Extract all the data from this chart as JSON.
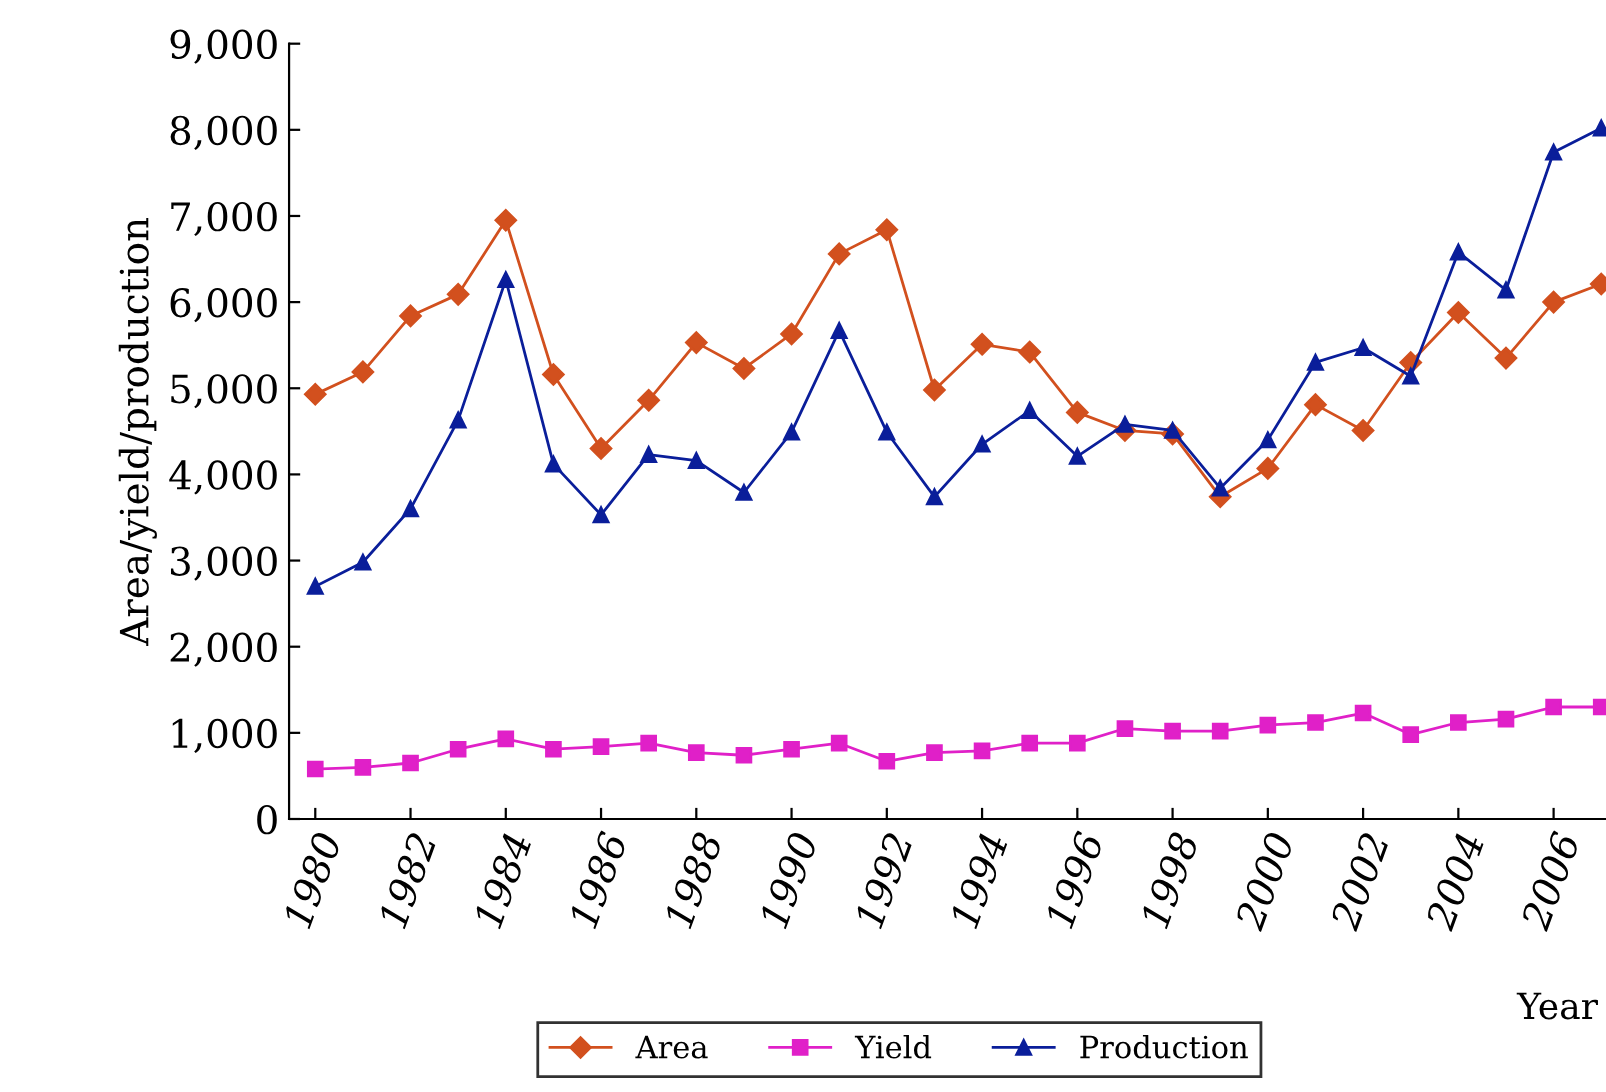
{
  "chart_data": {
    "type": "line",
    "ylabel": "Area/yield/production",
    "xlabel": "Year",
    "x": [
      1980,
      1981,
      1982,
      1983,
      1984,
      1985,
      1986,
      1987,
      1988,
      1989,
      1990,
      1991,
      1992,
      1993,
      1994,
      1995,
      1996,
      1997,
      1998,
      1999,
      2000,
      2001,
      2002,
      2003,
      2004,
      2005,
      2006,
      2007
    ],
    "series": [
      {
        "name": "Area",
        "color": "#d2501e",
        "marker": "diamond",
        "values": [
          4930,
          5190,
          5840,
          6090,
          6950,
          5160,
          4300,
          4860,
          5530,
          5230,
          5630,
          6560,
          6840,
          4980,
          5510,
          5420,
          4720,
          4510,
          4470,
          3740,
          4070,
          4810,
          4510,
          5300,
          5880,
          5350,
          6000,
          6210
        ]
      },
      {
        "name": "Yield",
        "color": "#e020c8",
        "marker": "square",
        "values": [
          580,
          600,
          650,
          810,
          930,
          810,
          840,
          880,
          770,
          740,
          810,
          880,
          670,
          770,
          790,
          880,
          880,
          1050,
          1020,
          1020,
          1090,
          1120,
          1230,
          980,
          1120,
          1160,
          1300,
          1300
        ]
      },
      {
        "name": "Production",
        "color": "#0a1e9a",
        "marker": "triangle",
        "values": [
          2700,
          2980,
          3600,
          4630,
          6260,
          4120,
          3530,
          4230,
          4160,
          3790,
          4490,
          5670,
          4490,
          3740,
          4350,
          4740,
          4210,
          4580,
          4510,
          3840,
          4400,
          5300,
          5470,
          5140,
          6580,
          6140,
          7740,
          8020
        ]
      }
    ],
    "xlim": [
      1979.45,
      2007.1
    ],
    "xticks": [
      1980,
      1982,
      1984,
      1986,
      1988,
      1990,
      1992,
      1994,
      1996,
      1998,
      2000,
      2002,
      2004,
      2006
    ],
    "ylim": [
      0,
      9000
    ],
    "yticks": [
      0,
      {
        "value": 1000,
        "label": "1,000"
      },
      {
        "value": 2000,
        "label": "2,000"
      },
      {
        "value": 3000,
        "label": "3,000"
      },
      {
        "value": 4000,
        "label": "4,000"
      },
      {
        "value": 5000,
        "label": "5,000"
      },
      {
        "value": 6000,
        "label": "6,000"
      },
      {
        "value": 7000,
        "label": "7,000"
      },
      {
        "value": 8000,
        "label": "8,000"
      },
      {
        "value": 9000,
        "label": "9,000"
      }
    ],
    "grid": false,
    "legend": "bottom",
    "line_style": "solid"
  }
}
